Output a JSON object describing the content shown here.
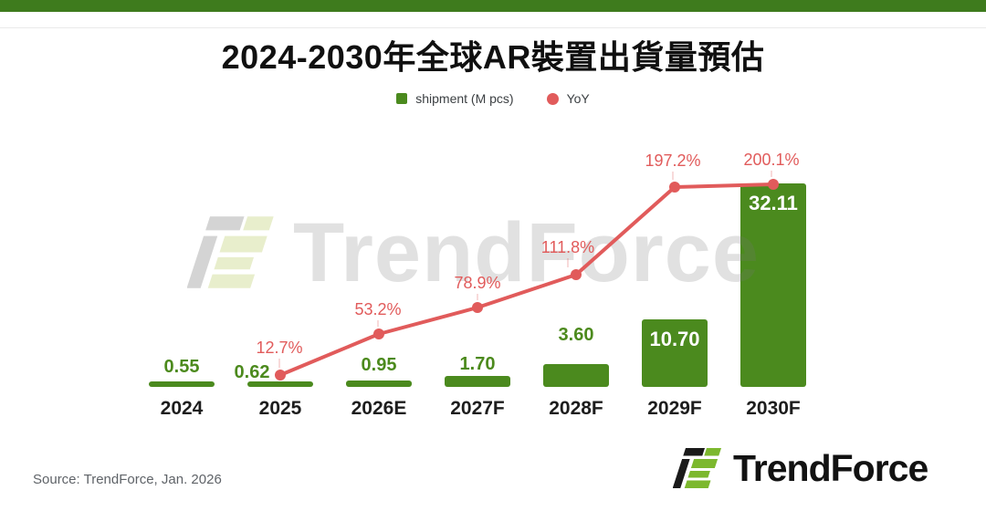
{
  "header": {
    "title": "2024-2030年全球AR裝置出貨量預估"
  },
  "legend": {
    "shipment": "shipment (M pcs)",
    "yoy": "YoY"
  },
  "chart_data": {
    "type": "bar+line",
    "title": "2024-2030年全球AR裝置出貨量預估",
    "categories": [
      "2024",
      "2025",
      "2026E",
      "2027F",
      "2028F",
      "2029F",
      "2030F"
    ],
    "series": [
      {
        "name": "shipment (M pcs)",
        "type": "bar",
        "unit": "M pcs",
        "values": [
          0.55,
          0.62,
          0.95,
          1.7,
          3.6,
          10.7,
          32.11
        ],
        "labels": [
          "0.55",
          "0.62",
          "0.95",
          "1.70",
          "3.60",
          "10.70",
          "32.11"
        ]
      },
      {
        "name": "YoY",
        "type": "line",
        "unit": "%",
        "values": [
          null,
          12.7,
          53.2,
          78.9,
          111.8,
          197.2,
          200.1
        ],
        "labels": [
          "",
          "12.7%",
          "53.2%",
          "78.9%",
          "111.8%",
          "197.2%",
          "200.1%"
        ]
      }
    ],
    "xlabel": "",
    "ylabel": "",
    "axes_visible": false,
    "grid": false,
    "legend_position": "top-center",
    "colors": {
      "bar": "#4b8a1e",
      "line": "#e15b5b",
      "accent_bar": "#3e7b1d"
    }
  },
  "watermark": {
    "text": "TrendForce"
  },
  "footer": {
    "source": "Source: TrendForce, Jan. 2026",
    "logo_text": "TrendForce"
  }
}
